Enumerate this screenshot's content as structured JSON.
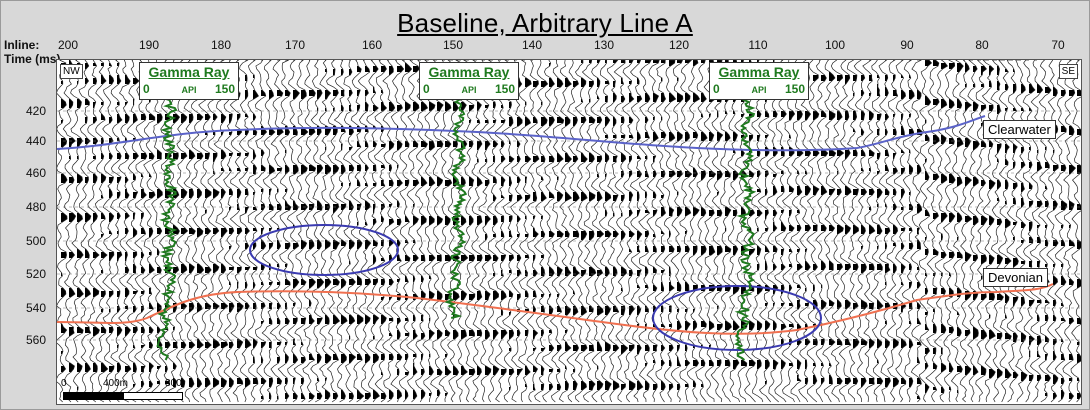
{
  "title": "Baseline, Arbitrary Line A",
  "axis": {
    "inline_label": "Inline:",
    "time_label": "Time (ms)",
    "inline_ticks": [
      "200",
      "190",
      "180",
      "170",
      "160",
      "150",
      "140",
      "130",
      "120",
      "110",
      "100",
      "90",
      "80",
      "70"
    ],
    "time_ticks": [
      "420",
      "440",
      "460",
      "480",
      "500",
      "520",
      "540",
      "560"
    ]
  },
  "corners": {
    "left": "NW",
    "right": "SE"
  },
  "gamma_ray": {
    "title": "Gamma Ray",
    "min": "0",
    "max": "150",
    "unit": "API"
  },
  "horizons": [
    {
      "name": "Clearwater",
      "color": "#5b63c9"
    },
    {
      "name": "Devonian",
      "color": "#f07050"
    }
  ],
  "scale_bar": {
    "labels": [
      "0",
      "400m",
      "800"
    ]
  },
  "colors": {
    "gamma_log": "#1f7a1f",
    "ellipse": "#3a3ab0"
  }
}
